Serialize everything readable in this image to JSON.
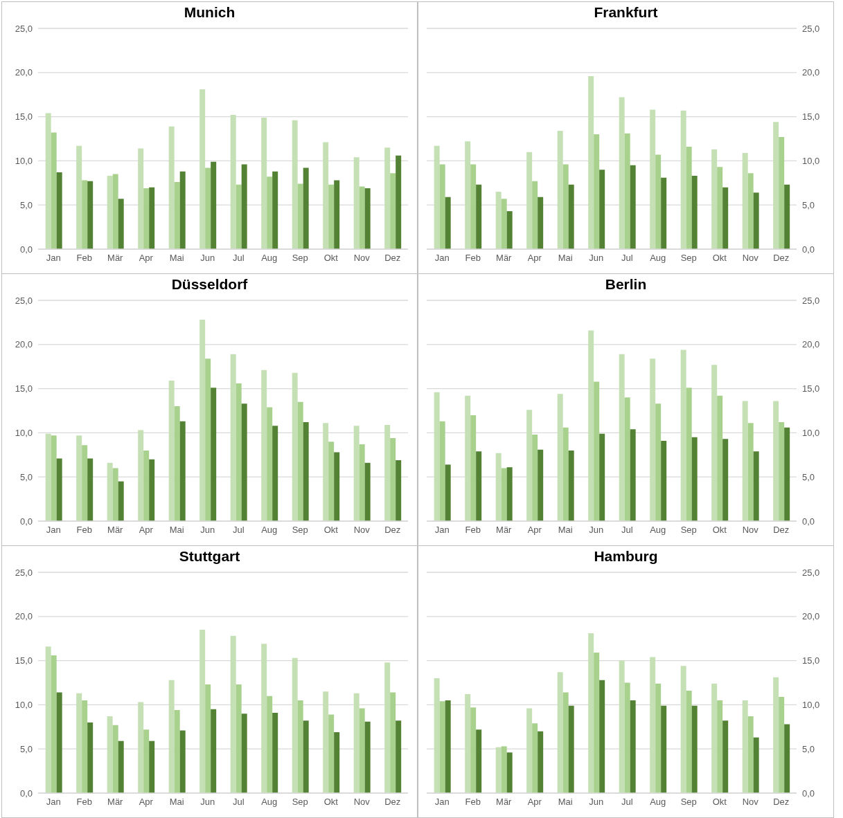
{
  "chart_data": [
    {
      "type": "bar",
      "title": "Munich",
      "categories": [
        "Jan",
        "Feb",
        "Mär",
        "Apr",
        "Mai",
        "Jun",
        "Jul",
        "Aug",
        "Sep",
        "Okt",
        "Nov",
        "Dez"
      ],
      "grid": "y",
      "ylim": [
        0,
        25
      ],
      "yticks": [
        {
          "value": 0,
          "label": "0,0"
        },
        {
          "value": 5,
          "label": "5,0"
        },
        {
          "value": 10,
          "label": "10,0"
        },
        {
          "value": 15,
          "label": "15,0"
        },
        {
          "value": 20,
          "label": "20,0"
        },
        {
          "value": 25,
          "label": "25,0"
        }
      ],
      "series": [
        {
          "color": "#c5e0b4",
          "values": [
            15.4,
            11.7,
            8.3,
            11.4,
            13.9,
            18.1,
            15.2,
            14.9,
            14.6,
            12.1,
            10.4,
            11.5
          ]
        },
        {
          "color": "#a9d18e",
          "values": [
            13.2,
            7.8,
            8.5,
            6.9,
            7.6,
            9.2,
            7.3,
            8.2,
            7.4,
            7.3,
            7.1,
            8.6
          ]
        },
        {
          "color": "#548235",
          "values": [
            8.7,
            7.7,
            5.7,
            7.0,
            8.8,
            9.9,
            9.6,
            8.8,
            9.2,
            7.8,
            6.9,
            10.6
          ]
        }
      ]
    },
    {
      "type": "bar",
      "title": "Frankfurt",
      "categories": [
        "Jan",
        "Feb",
        "Mär",
        "Apr",
        "Mai",
        "Jun",
        "Jul",
        "Aug",
        "Sep",
        "Okt",
        "Nov",
        "Dez"
      ],
      "grid": "y",
      "y2lim": [
        0,
        25
      ],
      "y2ticks": [
        {
          "value": 0,
          "label": "0,0"
        },
        {
          "value": 5,
          "label": "5,0"
        },
        {
          "value": 10,
          "label": "10,0"
        },
        {
          "value": 15,
          "label": "15,0"
        },
        {
          "value": 20,
          "label": "20,0"
        },
        {
          "value": 25,
          "label": "25,0"
        }
      ],
      "series": [
        {
          "axis": "y2",
          "color": "#c5e0b4",
          "values": [
            11.7,
            12.2,
            6.5,
            11.0,
            13.4,
            19.6,
            17.2,
            15.8,
            15.7,
            11.3,
            10.9,
            14.4
          ]
        },
        {
          "axis": "y2",
          "color": "#a9d18e",
          "values": [
            9.6,
            9.6,
            5.7,
            7.7,
            9.6,
            13.0,
            13.1,
            10.7,
            11.6,
            9.3,
            8.6,
            12.7
          ]
        },
        {
          "axis": "y2",
          "color": "#548235",
          "values": [
            5.9,
            7.3,
            4.3,
            5.9,
            7.3,
            9.0,
            9.5,
            8.1,
            8.3,
            7.0,
            6.4,
            7.3
          ]
        }
      ]
    },
    {
      "type": "bar",
      "title": "Düsseldorf",
      "categories": [
        "Jan",
        "Feb",
        "Mär",
        "Apr",
        "Mai",
        "Jun",
        "Jul",
        "Aug",
        "Sep",
        "Okt",
        "Nov",
        "Dez"
      ],
      "grid": "y",
      "ylim": [
        0,
        25
      ],
      "yticks": [
        {
          "value": 0,
          "label": "0,0"
        },
        {
          "value": 5,
          "label": "5,0"
        },
        {
          "value": 10,
          "label": "10,0"
        },
        {
          "value": 15,
          "label": "15,0"
        },
        {
          "value": 20,
          "label": "20,0"
        },
        {
          "value": 25,
          "label": "25,0"
        }
      ],
      "series": [
        {
          "color": "#c5e0b4",
          "values": [
            9.9,
            9.7,
            6.6,
            10.3,
            15.9,
            22.8,
            18.9,
            17.1,
            16.8,
            11.1,
            10.8,
            10.9
          ]
        },
        {
          "color": "#a9d18e",
          "values": [
            9.7,
            8.6,
            6.0,
            8.0,
            13.0,
            18.4,
            15.6,
            12.9,
            13.5,
            9.0,
            8.7,
            9.4
          ]
        },
        {
          "color": "#548235",
          "values": [
            7.1,
            7.1,
            4.5,
            7.0,
            11.3,
            15.1,
            13.3,
            10.8,
            11.2,
            7.8,
            6.6,
            6.9
          ]
        }
      ]
    },
    {
      "type": "bar",
      "title": "Berlin",
      "categories": [
        "Jan",
        "Feb",
        "Mär",
        "Apr",
        "Mai",
        "Jun",
        "Jul",
        "Aug",
        "Sep",
        "Okt",
        "Nov",
        "Dez"
      ],
      "grid": "y",
      "y2lim": [
        0,
        25
      ],
      "y2ticks": [
        {
          "value": 0,
          "label": "0,0"
        },
        {
          "value": 5,
          "label": "5,0"
        },
        {
          "value": 10,
          "label": "10,0"
        },
        {
          "value": 15,
          "label": "15,0"
        },
        {
          "value": 20,
          "label": "20,0"
        },
        {
          "value": 25,
          "label": "25,0"
        }
      ],
      "series": [
        {
          "axis": "y2",
          "color": "#c5e0b4",
          "values": [
            14.6,
            14.2,
            7.7,
            12.6,
            14.4,
            21.6,
            18.9,
            18.4,
            19.4,
            17.7,
            13.6,
            13.6
          ]
        },
        {
          "axis": "y2",
          "color": "#a9d18e",
          "values": [
            11.3,
            12.0,
            6.0,
            9.8,
            10.6,
            15.8,
            14.0,
            13.3,
            15.1,
            14.2,
            11.1,
            11.2
          ]
        },
        {
          "axis": "y2",
          "color": "#548235",
          "values": [
            6.4,
            7.9,
            6.1,
            8.1,
            8.0,
            9.9,
            10.4,
            9.1,
            9.5,
            9.3,
            7.9,
            10.6
          ]
        }
      ]
    },
    {
      "type": "bar",
      "title": "Stuttgart",
      "categories": [
        "Jan",
        "Feb",
        "Mär",
        "Apr",
        "Mai",
        "Jun",
        "Jul",
        "Aug",
        "Sep",
        "Okt",
        "Nov",
        "Dez"
      ],
      "grid": "y",
      "ylim": [
        0,
        25
      ],
      "yticks": [
        {
          "value": 0,
          "label": "0,0"
        },
        {
          "value": 5,
          "label": "5,0"
        },
        {
          "value": 10,
          "label": "10,0"
        },
        {
          "value": 15,
          "label": "15,0"
        },
        {
          "value": 20,
          "label": "20,0"
        },
        {
          "value": 25,
          "label": "25,0"
        }
      ],
      "series": [
        {
          "color": "#c5e0b4",
          "values": [
            16.6,
            11.3,
            8.7,
            10.3,
            12.8,
            18.5,
            17.8,
            16.9,
            15.3,
            11.5,
            11.3,
            14.8
          ]
        },
        {
          "color": "#a9d18e",
          "values": [
            15.6,
            10.5,
            7.7,
            7.2,
            9.4,
            12.3,
            12.3,
            11.0,
            10.5,
            8.9,
            9.6,
            11.4
          ]
        },
        {
          "color": "#548235",
          "values": [
            11.4,
            8.0,
            5.9,
            5.9,
            7.1,
            9.5,
            9.0,
            9.1,
            8.2,
            6.9,
            8.1,
            8.2
          ]
        }
      ]
    },
    {
      "type": "bar",
      "title": "Hamburg",
      "categories": [
        "Jan",
        "Feb",
        "Mär",
        "Apr",
        "Mai",
        "Jun",
        "Jul",
        "Aug",
        "Sep",
        "Okt",
        "Nov",
        "Dez"
      ],
      "grid": "y",
      "y2lim": [
        0,
        25
      ],
      "y2ticks": [
        {
          "value": 0,
          "label": "0,0"
        },
        {
          "value": 5,
          "label": "5,0"
        },
        {
          "value": 10,
          "label": "10,0"
        },
        {
          "value": 15,
          "label": "15,0"
        },
        {
          "value": 20,
          "label": "20,0"
        },
        {
          "value": 25,
          "label": "25,0"
        }
      ],
      "series": [
        {
          "axis": "y2",
          "color": "#c5e0b4",
          "values": [
            13.0,
            11.2,
            5.2,
            9.6,
            13.7,
            18.1,
            15.0,
            15.4,
            14.4,
            12.4,
            10.5,
            13.1
          ]
        },
        {
          "axis": "y2",
          "color": "#a9d18e",
          "values": [
            10.4,
            9.7,
            5.3,
            7.9,
            11.4,
            15.9,
            12.5,
            12.4,
            11.6,
            10.5,
            8.7,
            10.9
          ]
        },
        {
          "axis": "y2",
          "color": "#548235",
          "values": [
            10.5,
            7.2,
            4.6,
            7.0,
            9.9,
            12.8,
            10.5,
            9.9,
            9.9,
            8.2,
            6.3,
            7.8
          ]
        }
      ]
    }
  ]
}
